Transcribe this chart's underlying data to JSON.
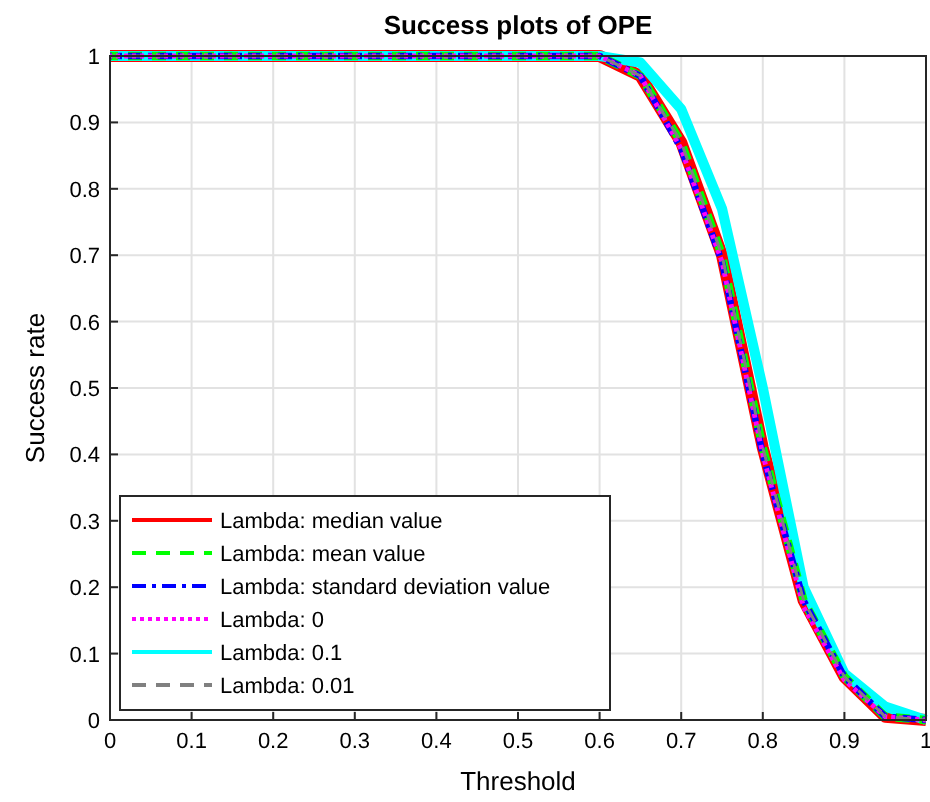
{
  "chart_data": {
    "type": "line",
    "title": "Success plots of OPE",
    "xlabel": "Threshold",
    "ylabel": "Success rate",
    "x": [
      0,
      0.05,
      0.1,
      0.15,
      0.2,
      0.25,
      0.3,
      0.35,
      0.4,
      0.45,
      0.5,
      0.55,
      0.6,
      0.65,
      0.7,
      0.75,
      0.8,
      0.85,
      0.9,
      0.95,
      1
    ],
    "xlim": [
      0,
      1
    ],
    "ylim": [
      0,
      1
    ],
    "xticks": [
      0,
      0.1,
      0.2,
      0.3,
      0.4,
      0.5,
      0.6,
      0.7,
      0.8,
      0.9,
      1
    ],
    "yticks": [
      0,
      0.1,
      0.2,
      0.3,
      0.4,
      0.5,
      0.6,
      0.7,
      0.8,
      0.9,
      1
    ],
    "grid": true,
    "legend": "bottom left",
    "series": [
      {
        "name": "Lambda: median value",
        "color": "#ff0000",
        "line_style": "solid",
        "values": [
          1,
          1,
          1,
          1,
          1,
          1,
          1,
          1,
          1,
          1,
          1,
          1,
          1,
          0.97,
          0.87,
          0.7,
          0.41,
          0.18,
          0.065,
          0.005,
          0
        ]
      },
      {
        "name": "Lambda: mean value",
        "color": "#00ff00",
        "line_style": "dashed",
        "values": [
          1,
          1,
          1,
          1,
          1,
          1,
          1,
          1,
          1,
          1,
          1,
          1,
          1,
          0.97,
          0.87,
          0.7,
          0.41,
          0.18,
          0.065,
          0.005,
          0
        ]
      },
      {
        "name": "Lambda: standard deviation value",
        "color": "#0000ff",
        "line_style": "dashdot",
        "values": [
          1,
          1,
          1,
          1,
          1,
          1,
          1,
          1,
          1,
          1,
          1,
          1,
          1,
          0.97,
          0.86,
          0.69,
          0.4,
          0.18,
          0.065,
          0.005,
          0
        ]
      },
      {
        "name": "Lambda: 0",
        "color": "#ff00ff",
        "line_style": "dotted",
        "values": [
          1,
          1,
          1,
          1,
          1,
          1,
          1,
          1,
          1,
          1,
          1,
          1,
          1,
          0.97,
          0.86,
          0.69,
          0.4,
          0.17,
          0.06,
          0.005,
          0
        ]
      },
      {
        "name": "Lambda: 0.1",
        "color": "#00ffff",
        "line_style": "solid",
        "values": [
          1,
          1,
          1,
          1,
          1,
          1,
          1,
          1,
          1,
          1,
          1,
          1,
          1,
          0.99,
          0.92,
          0.77,
          0.5,
          0.2,
          0.07,
          0.02,
          0
        ]
      },
      {
        "name": "Lambda: 0.01",
        "color": "#808080",
        "line_style": "dashed",
        "values": [
          1,
          1,
          1,
          1,
          1,
          1,
          1,
          1,
          1,
          1,
          1,
          1,
          1,
          0.97,
          0.87,
          0.7,
          0.41,
          0.18,
          0.065,
          0.005,
          0
        ]
      }
    ]
  }
}
